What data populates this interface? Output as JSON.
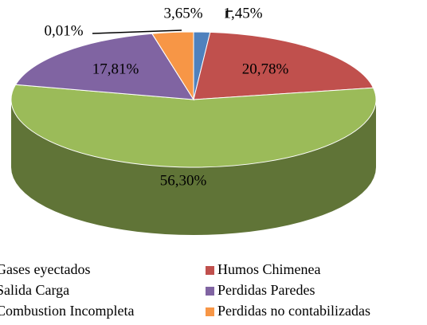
{
  "chart_data": {
    "type": "pie3d",
    "categories": [
      "Gases eyectados",
      "Humos Chimenea",
      "Salida Carga",
      "Perdidas Paredes",
      "Combustion Incompleta",
      "Perdidas no contabilizadas"
    ],
    "values": [
      1.45,
      20.78,
      56.3,
      17.81,
      0.01,
      3.65
    ],
    "value_labels": [
      "1,45%",
      "20,78%",
      "56,30%",
      "17,81%",
      "0,01%",
      "3,65%"
    ],
    "colors": [
      "#4f81bd",
      "#c0504d",
      "#9bbb59",
      "#8064a2",
      "#4bacc6",
      "#f79646"
    ],
    "legend": "bottom"
  }
}
